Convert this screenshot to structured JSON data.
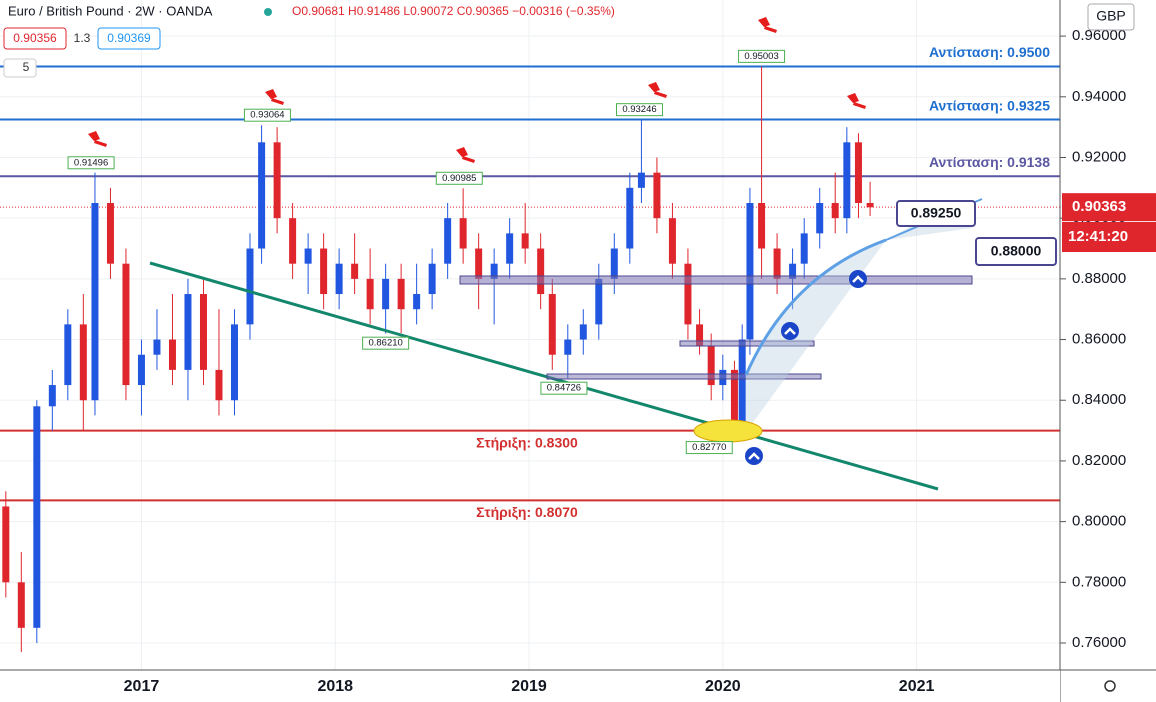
{
  "header": {
    "symbol": "Euro / British Pound · 2W · OANDA",
    "ohlc": "O0.90681 H0.91486 L0.90072 C0.90365 −0.00316 (−0.35%)",
    "bid": "0.90356",
    "spread": "1.3",
    "ask": "0.90369",
    "interval_badge": "5",
    "currency": "GBP",
    "timer": "12:41:20",
    "tool_labels": [
      "0.89250",
      "0.88000"
    ]
  },
  "chart_data": {
    "type": "candlestick",
    "up_color": "#2157e0",
    "down_color": "#e0262d",
    "xlim": [
      2016.27,
      2021.74
    ],
    "ylim": [
      0.7511,
      0.9719
    ],
    "xticks": [
      2017,
      2018,
      2019,
      2020,
      2021
    ],
    "yticks": [
      {
        "value": 0.76,
        "label": "0.76000"
      },
      {
        "value": 0.78,
        "label": "0.78000"
      },
      {
        "value": 0.8,
        "label": "0.80000"
      },
      {
        "value": 0.82,
        "label": "0.82000"
      },
      {
        "value": 0.84,
        "label": "0.84000"
      },
      {
        "value": 0.86,
        "label": "0.86000"
      },
      {
        "value": 0.88,
        "label": "0.88000"
      },
      {
        "value": 0.9,
        "label": "0.90000"
      },
      {
        "value": 0.92,
        "label": "0.92000"
      },
      {
        "value": 0.94,
        "label": "0.94000"
      },
      {
        "value": 0.96,
        "label": "0.96000"
      }
    ],
    "grid": true,
    "x": [
      2016.3,
      2016.38,
      2016.46,
      2016.54,
      2016.62,
      2016.7,
      2016.76,
      2016.84,
      2016.92,
      2017.0,
      2017.08,
      2017.16,
      2017.24,
      2017.32,
      2017.4,
      2017.48,
      2017.56,
      2017.62,
      2017.7,
      2017.78,
      2017.86,
      2017.94,
      2018.02,
      2018.1,
      2018.18,
      2018.26,
      2018.34,
      2018.42,
      2018.5,
      2018.58,
      2018.66,
      2018.74,
      2018.82,
      2018.9,
      2018.98,
      2019.06,
      2019.12,
      2019.2,
      2019.28,
      2019.36,
      2019.44,
      2019.52,
      2019.58,
      2019.66,
      2019.74,
      2019.82,
      2019.88,
      2019.94,
      2020.0,
      2020.06,
      2020.1,
      2020.14,
      2020.2,
      2020.28,
      2020.36,
      2020.42,
      2020.5,
      2020.58,
      2020.64,
      2020.7,
      2020.76
    ],
    "open": [
      0.805,
      0.78,
      0.765,
      0.838,
      0.845,
      0.865,
      0.84,
      0.905,
      0.885,
      0.845,
      0.855,
      0.86,
      0.85,
      0.875,
      0.85,
      0.84,
      0.865,
      0.89,
      0.925,
      0.9,
      0.885,
      0.89,
      0.875,
      0.885,
      0.88,
      0.87,
      0.88,
      0.87,
      0.875,
      0.885,
      0.9,
      0.89,
      0.88,
      0.885,
      0.895,
      0.89,
      0.875,
      0.855,
      0.86,
      0.865,
      0.88,
      0.89,
      0.91,
      0.915,
      0.9,
      0.885,
      0.865,
      0.858,
      0.845,
      0.85,
      0.832,
      0.86,
      0.905,
      0.89,
      0.88,
      0.885,
      0.895,
      0.905,
      0.9,
      0.925,
      0.905
    ],
    "high": [
      0.81,
      0.79,
      0.84,
      0.85,
      0.87,
      0.875,
      0.915,
      0.91,
      0.89,
      0.86,
      0.87,
      0.875,
      0.88,
      0.88,
      0.87,
      0.87,
      0.895,
      0.93064,
      0.93,
      0.905,
      0.895,
      0.895,
      0.89,
      0.895,
      0.89,
      0.885,
      0.885,
      0.885,
      0.89,
      0.905,
      0.90985,
      0.895,
      0.89,
      0.9,
      0.905,
      0.895,
      0.88,
      0.865,
      0.87,
      0.885,
      0.895,
      0.915,
      0.93246,
      0.92,
      0.905,
      0.89,
      0.87,
      0.862,
      0.855,
      0.853,
      0.865,
      0.91,
      0.95003,
      0.895,
      0.89,
      0.9,
      0.91,
      0.915,
      0.93,
      0.928,
      0.912
    ],
    "low": [
      0.775,
      0.757,
      0.76,
      0.83,
      0.84,
      0.83,
      0.835,
      0.88,
      0.84,
      0.835,
      0.85,
      0.845,
      0.84,
      0.845,
      0.835,
      0.835,
      0.86,
      0.885,
      0.895,
      0.88,
      0.875,
      0.87,
      0.87,
      0.875,
      0.865,
      0.862,
      0.8621,
      0.865,
      0.87,
      0.88,
      0.885,
      0.87,
      0.865,
      0.88,
      0.885,
      0.87,
      0.85,
      0.84726,
      0.855,
      0.86,
      0.875,
      0.885,
      0.905,
      0.895,
      0.88,
      0.86,
      0.855,
      0.84,
      0.84,
      0.8277,
      0.83,
      0.855,
      0.88,
      0.875,
      0.87,
      0.88,
      0.89,
      0.895,
      0.895,
      0.9,
      0.9007
    ],
    "close": [
      0.78,
      0.765,
      0.838,
      0.845,
      0.865,
      0.84,
      0.905,
      0.885,
      0.845,
      0.855,
      0.86,
      0.85,
      0.875,
      0.85,
      0.84,
      0.865,
      0.89,
      0.925,
      0.9,
      0.885,
      0.89,
      0.875,
      0.885,
      0.88,
      0.87,
      0.88,
      0.87,
      0.875,
      0.885,
      0.9,
      0.89,
      0.88,
      0.885,
      0.895,
      0.89,
      0.875,
      0.855,
      0.86,
      0.865,
      0.88,
      0.89,
      0.91,
      0.915,
      0.9,
      0.885,
      0.865,
      0.858,
      0.845,
      0.85,
      0.832,
      0.86,
      0.905,
      0.89,
      0.88,
      0.885,
      0.895,
      0.905,
      0.9,
      0.925,
      0.905,
      0.9036
    ],
    "last_price": 0.90363,
    "resistance": [
      {
        "label": "Αντίσταση: 0.9500",
        "value": 0.95,
        "color": "#1e6fd0"
      },
      {
        "label": "Αντίσταση: 0.9325",
        "value": 0.9325,
        "color": "#1e6fd0"
      },
      {
        "label": "Αντίσταση: 0.9138",
        "value": 0.9138,
        "color": "#5b57a2"
      }
    ],
    "support": [
      {
        "label": "Στήριξη: 0.8300",
        "value": 0.83,
        "color": "#d2302f"
      },
      {
        "label": "Στήριξη: 0.8070",
        "value": 0.807,
        "color": "#d2302f"
      }
    ],
    "high_labels": [
      {
        "x": 2016.74,
        "value": 0.91496
      },
      {
        "x": 2017.65,
        "value": 0.93064
      },
      {
        "x": 2018.64,
        "value": 0.90985
      },
      {
        "x": 2019.57,
        "value": 0.93246
      },
      {
        "x": 2020.2,
        "value": 0.95003
      }
    ],
    "low_labels": [
      {
        "x": 2018.26,
        "value": 0.8621,
        "label": "0.86210"
      },
      {
        "x": 2019.18,
        "value": 0.84726
      },
      {
        "x": 2019.93,
        "value": 0.8277,
        "label": "0.82770"
      }
    ]
  }
}
